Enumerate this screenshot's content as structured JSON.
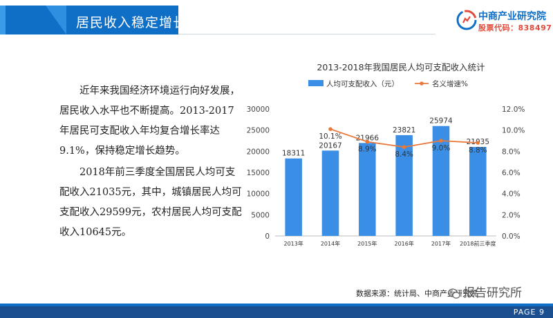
{
  "header": {
    "title": "居民收入稳定增长",
    "logo_name": "中商产业研究院",
    "logo_code": "股票代码：838497"
  },
  "body_text": {
    "paragraph1": "近年来我国经济环境运行向好发展，居民收入水平也不断提高。2013-2017年居民可支配收入年均复合增长率达9.1%，保持稳定增长趋势。",
    "paragraph2": "2018年前三季度全国居民人均可支配收入21035元，其中，城镇居民人均可支配收入29599元，农村居民人均可支配收入10645元。"
  },
  "chart_data": {
    "type": "bar",
    "title": "2013-2018年我国居民人均可支配收入统计",
    "categories": [
      "2013年",
      "2014年",
      "2015年",
      "2016年",
      "2017年",
      "2018前三季度"
    ],
    "series": [
      {
        "name": "人均可支配收入（元）",
        "type": "bar",
        "axis": "left",
        "values": [
          18311,
          20167,
          21966,
          23821,
          25974,
          21035
        ],
        "labels": [
          "18311",
          "20167",
          "21966",
          "23821",
          "25974",
          "21035"
        ]
      },
      {
        "name": "名义增速%",
        "type": "line",
        "axis": "right",
        "values": [
          null,
          10.1,
          8.9,
          8.4,
          9.0,
          8.8
        ],
        "labels": [
          "",
          "10.1%",
          "8.9%",
          "8.4%",
          "9.0%",
          "8.8%"
        ]
      }
    ],
    "ylim_left": [
      0,
      30000
    ],
    "yticks_left": [
      "0",
      "5000",
      "10000",
      "15000",
      "20000",
      "25000",
      "30000"
    ],
    "ylim_right": [
      0,
      12
    ],
    "yticks_right": [
      "0.0%",
      "2.0%",
      "4.0%",
      "6.0%",
      "8.0%",
      "10.0%",
      "12.0%"
    ],
    "legend_position": "top",
    "grid": false,
    "colors": {
      "bar": "#3a8ee6",
      "line": "#e8793a"
    }
  },
  "footer": {
    "source": "数据来源：统计局、中商产业研究院",
    "wechat": "报告研究所",
    "page": "PAGE 9"
  }
}
